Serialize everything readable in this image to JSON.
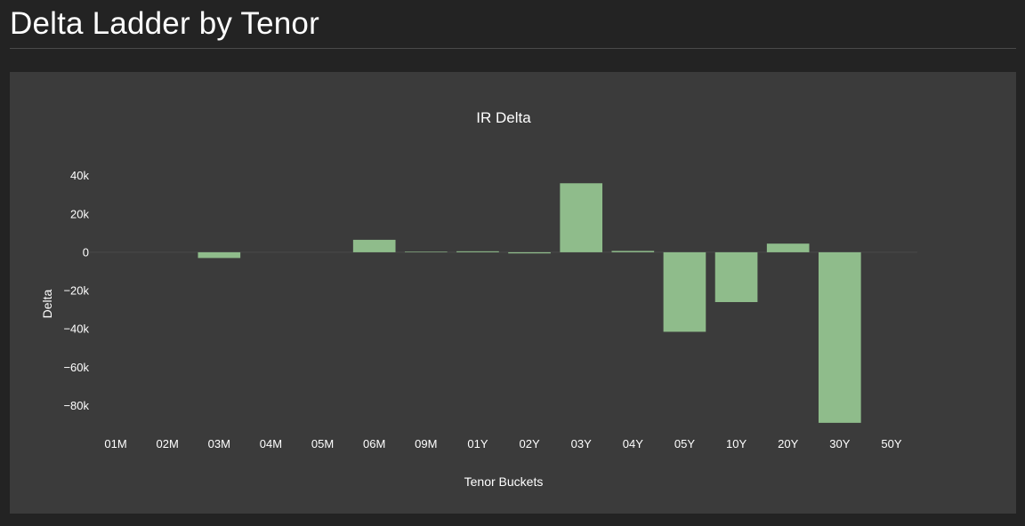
{
  "page": {
    "title": "Delta Ladder by Tenor"
  },
  "chart_data": {
    "type": "bar",
    "title": "IR Delta",
    "xlabel": "Tenor Buckets",
    "ylabel": "Delta",
    "categories": [
      "01M",
      "02M",
      "03M",
      "04M",
      "05M",
      "06M",
      "09M",
      "01Y",
      "02Y",
      "03Y",
      "04Y",
      "05Y",
      "10Y",
      "20Y",
      "30Y",
      "50Y"
    ],
    "series": [
      {
        "values": [
          0,
          0,
          -3000,
          0,
          0,
          6500,
          300,
          500,
          -600,
          36000,
          700,
          -41500,
          -26000,
          4500,
          -89000,
          0
        ]
      }
    ],
    "yticks": [
      40000,
      20000,
      0,
      -20000,
      -40000,
      -60000,
      -80000
    ],
    "ytick_labels": [
      "40k",
      "20k",
      "0",
      "−20k",
      "−40k",
      "−60k",
      "−80k"
    ],
    "ylim": [
      -93000,
      44000
    ],
    "grid": false,
    "legend": "none",
    "colors": {
      "bar": "#8fbc8b",
      "zero_line": "#4a4a4a",
      "panel": "#3b3b3b",
      "background": "#232323"
    }
  }
}
